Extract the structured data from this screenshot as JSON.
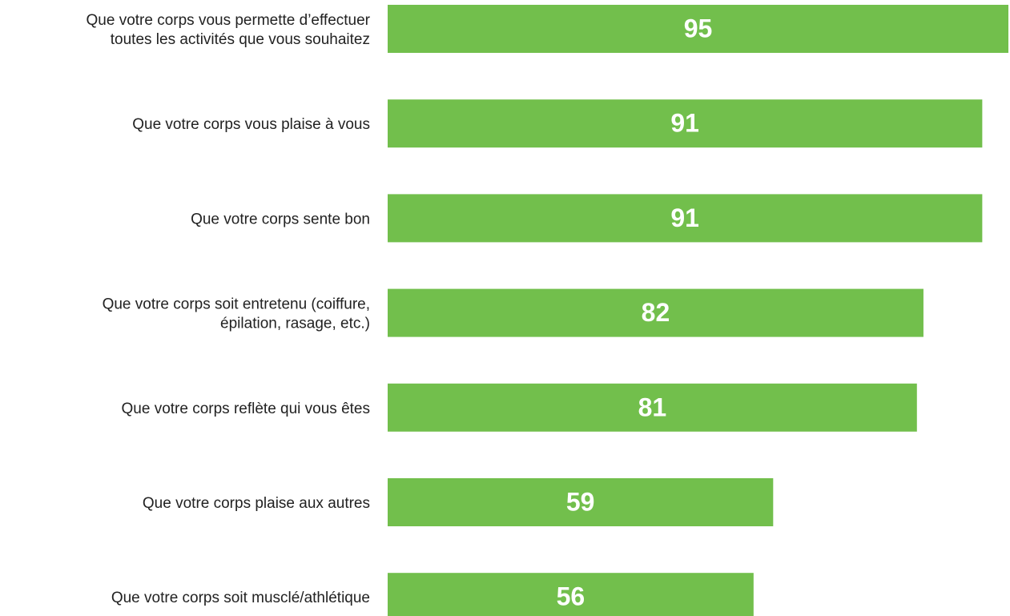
{
  "chart_data": {
    "type": "hbar",
    "categories": [
      "Que votre corps vous permette d’effectuer\ntoutes les activités que vous souhaitez",
      "Que votre corps vous plaise à vous",
      "Que votre corps sente bon",
      "Que votre corps soit entretenu (coiffure,\népilation, rasage, etc.)",
      "Que votre corps reflète qui vous êtes",
      "Que votre corps plaise aux autres",
      "Que votre corps soit musclé/athlétique"
    ],
    "values": [
      95,
      91,
      91,
      82,
      81,
      59,
      56
    ],
    "color": "#72bf4c",
    "xlim": [
      0,
      95
    ]
  }
}
